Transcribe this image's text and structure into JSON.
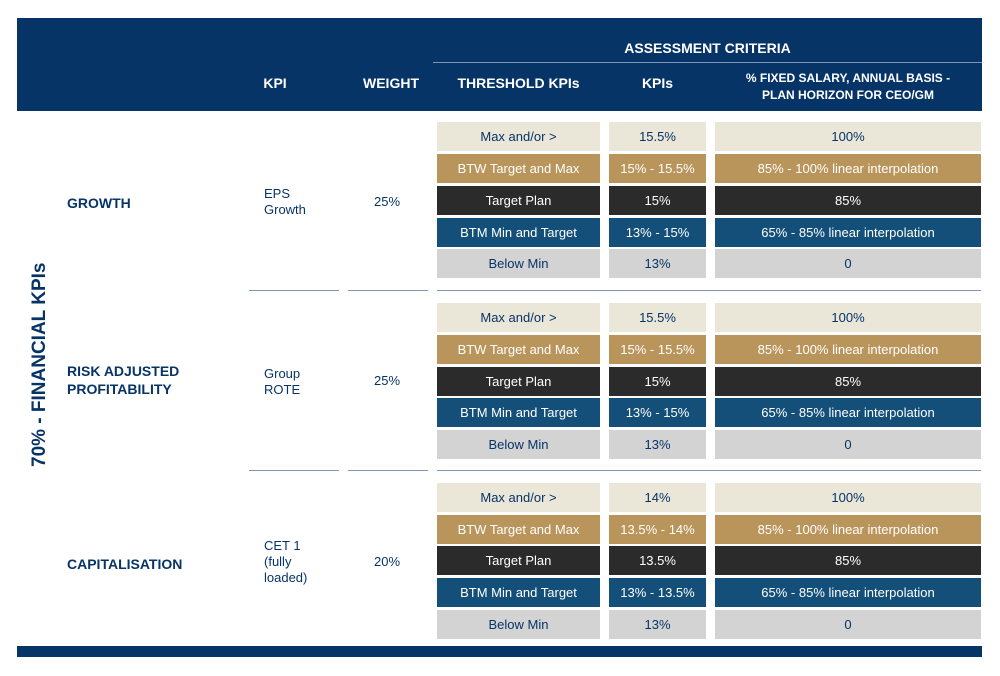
{
  "header": {
    "assessment_criteria": "ASSESSMENT CRITERIA",
    "kpi": "KPI",
    "weight": "WEIGHT",
    "threshold_kpis": "THRESHOLD KPIs",
    "kpis": "KPIs",
    "payout_line1": "% FIXED SALARY, ANNUAL BASIS -",
    "payout_line2": "PLAN HORIZON FOR CEO/GM"
  },
  "side_label": "70% - FINANCIAL KPIs",
  "sections": [
    {
      "name_lines": [
        "GROWTH"
      ],
      "kpi_lines": [
        "EPS",
        "Growth"
      ],
      "weight": "25%",
      "rows": [
        {
          "threshold": "Max and/or >",
          "kpi": "15.5%",
          "payout": "100%"
        },
        {
          "threshold": "BTW  Target and Max",
          "kpi": "15% - 15.5%",
          "payout": "85% - 100% linear interpolation"
        },
        {
          "threshold": "Target Plan",
          "kpi": "15%",
          "payout": "85%"
        },
        {
          "threshold": "BTM Min and Target",
          "kpi": "13% - 15%",
          "payout": "65% - 85% linear interpolation"
        },
        {
          "threshold": "Below Min",
          "kpi": "13%",
          "payout": "0"
        }
      ]
    },
    {
      "name_lines": [
        "RISK ADJUSTED",
        "PROFITABILITY"
      ],
      "kpi_lines": [
        "Group",
        "ROTE"
      ],
      "weight": "25%",
      "rows": [
        {
          "threshold": "Max and/or >",
          "kpi": "15.5%",
          "payout": "100%"
        },
        {
          "threshold": "BTW  Target and Max",
          "kpi": "15% - 15.5%",
          "payout": "85% - 100% linear interpolation"
        },
        {
          "threshold": "Target Plan",
          "kpi": "15%",
          "payout": "85%"
        },
        {
          "threshold": "BTM Min and Target",
          "kpi": "13% - 15%",
          "payout": "65% - 85% linear interpolation"
        },
        {
          "threshold": "Below Min",
          "kpi": "13%",
          "payout": "0"
        }
      ]
    },
    {
      "name_lines": [
        "CAPITALISATION"
      ],
      "kpi_lines": [
        "CET 1",
        "(fully",
        "loaded)"
      ],
      "weight": "20%",
      "rows": [
        {
          "threshold": "Max and/or >",
          "kpi": "14%",
          "payout": "100%"
        },
        {
          "threshold": "BTW  Target and Max",
          "kpi": "13.5% - 14%",
          "payout": "85% - 100% linear interpolation"
        },
        {
          "threshold": "Target Plan",
          "kpi": "13.5%",
          "payout": "85%"
        },
        {
          "threshold": "BTM Min and Target",
          "kpi": "13% - 13.5%",
          "payout": "65% - 85% linear interpolation"
        },
        {
          "threshold": "Below Min",
          "kpi": "13%",
          "payout": "0"
        }
      ]
    }
  ],
  "colors": {
    "navy": "#073467",
    "tier_max": "#eae6d8",
    "tier_between_max": "#b9955b",
    "tier_target": "#2b2b2b",
    "tier_between_min": "#134f78",
    "tier_below": "#d3d3d3"
  }
}
